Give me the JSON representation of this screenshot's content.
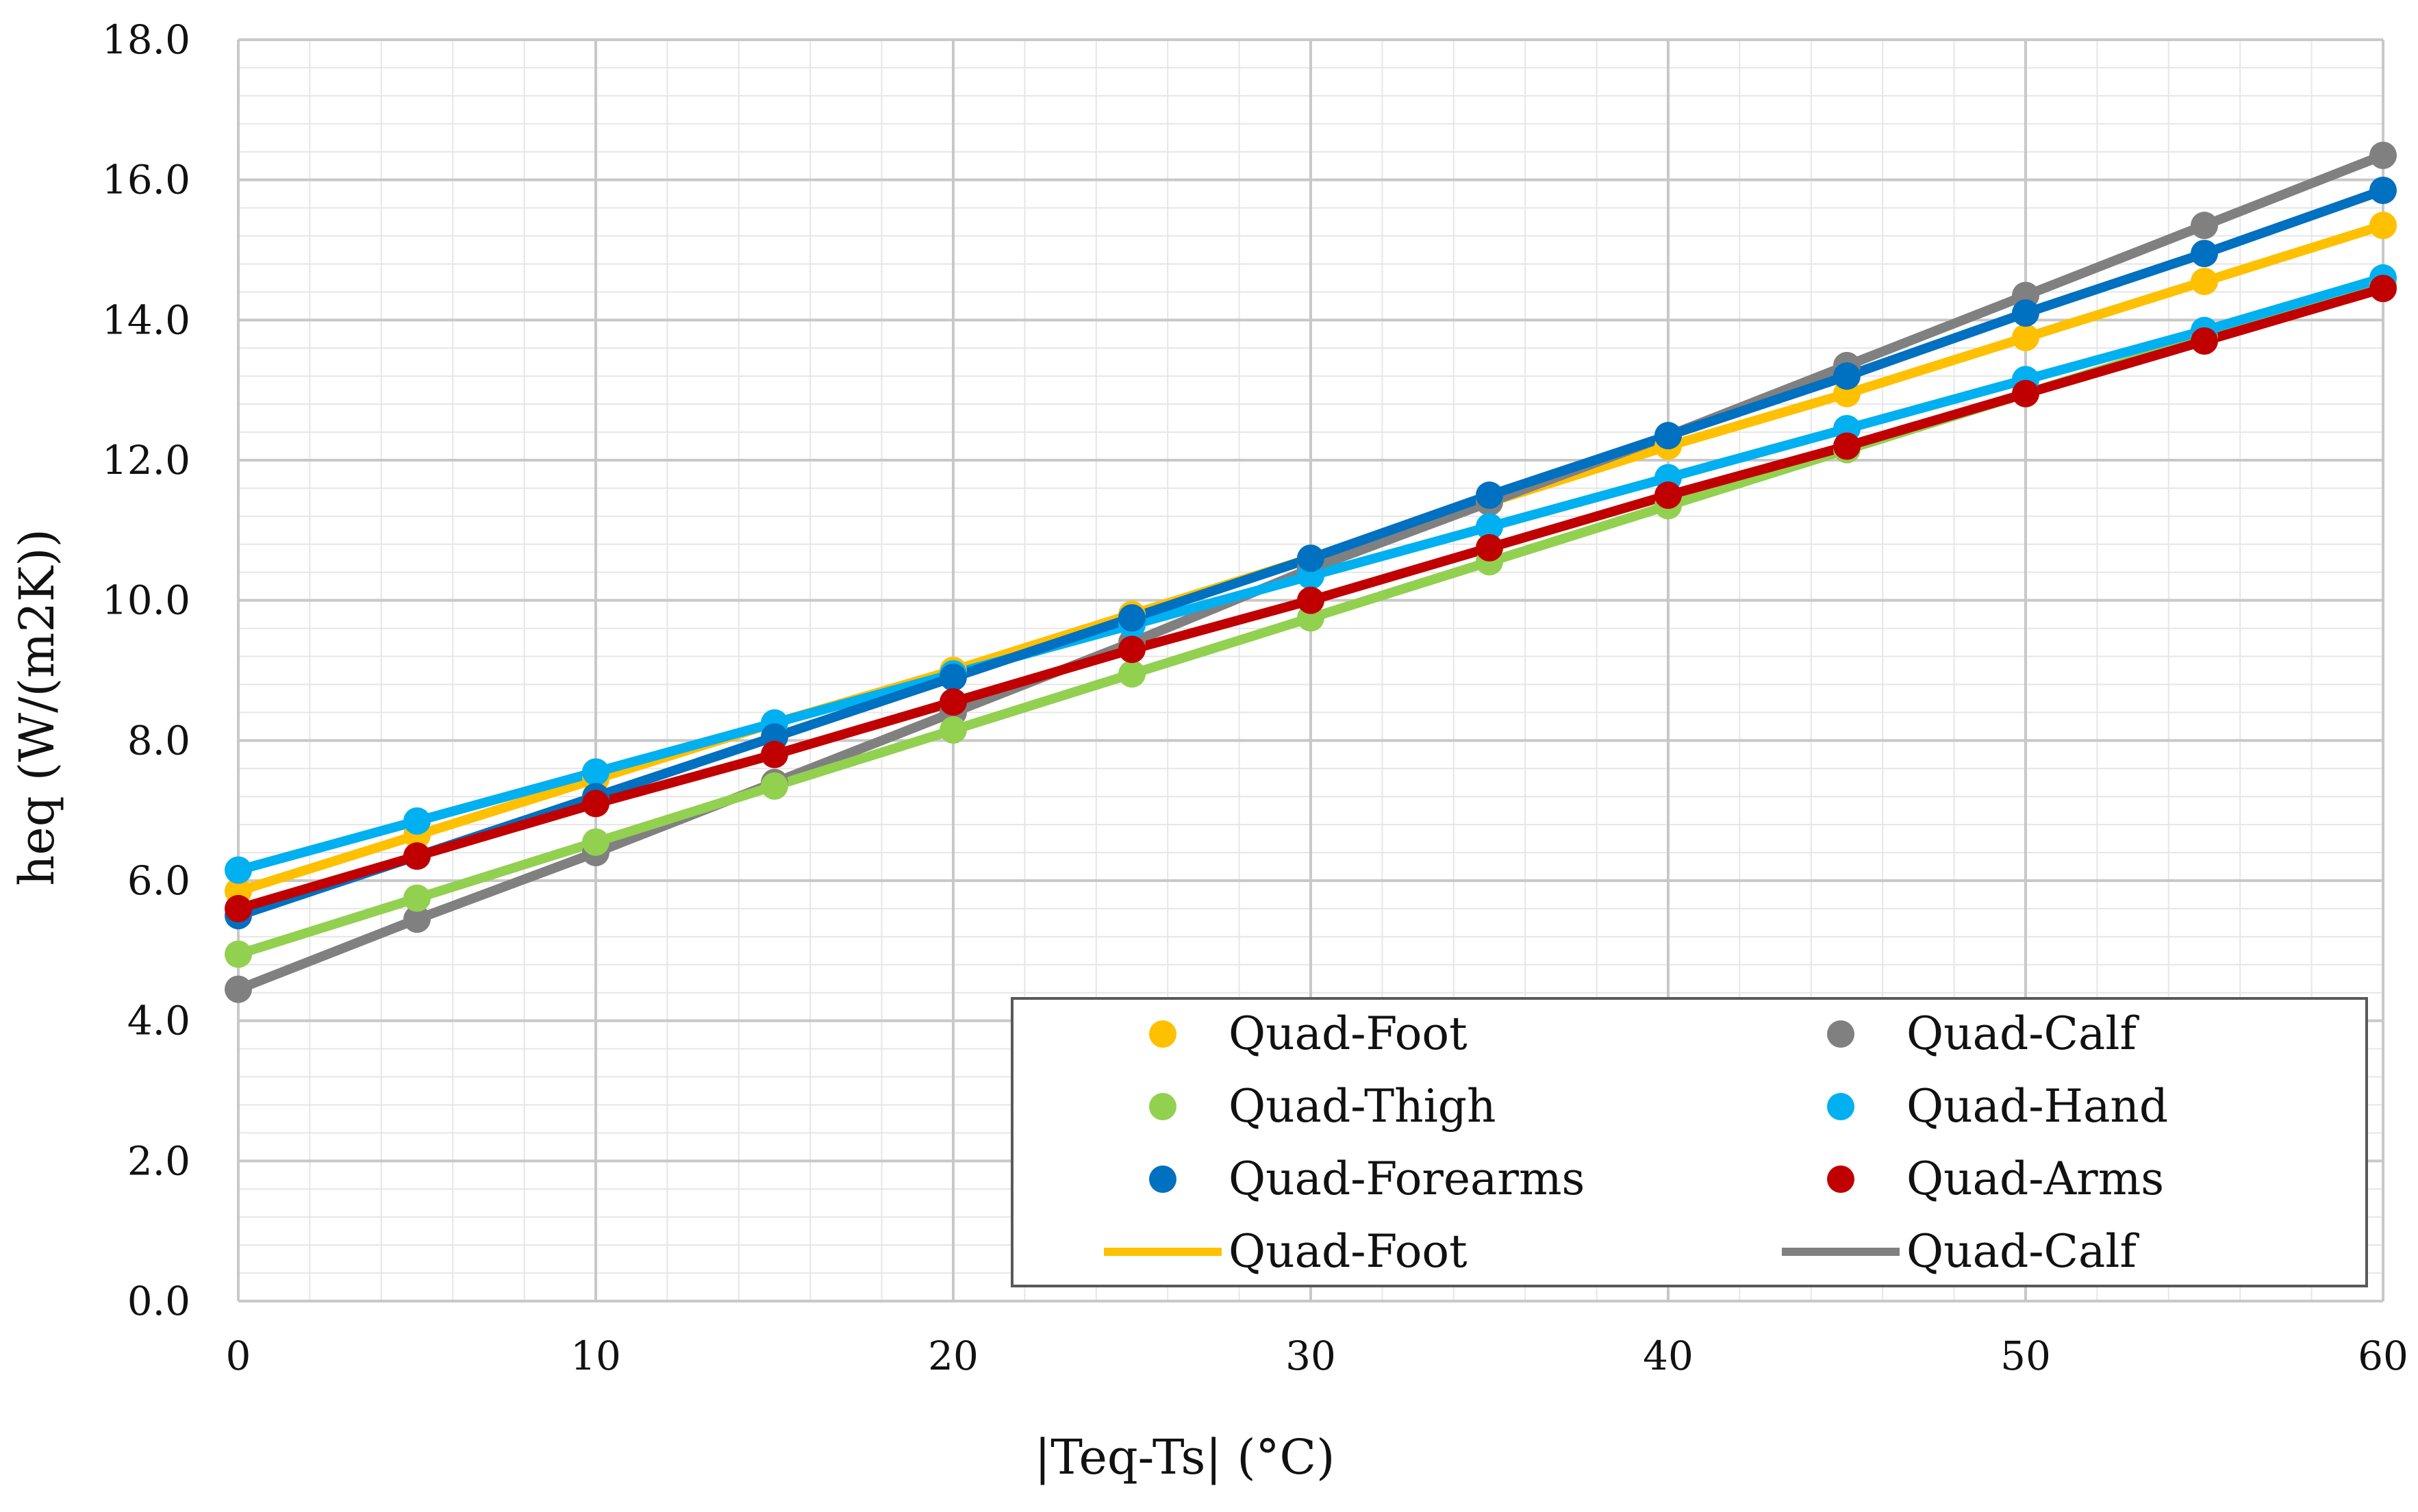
{
  "chart_data": {
    "type": "line",
    "title": "",
    "xlabel": "|Teq-Ts| (°C)",
    "ylabel": "heq (W/(m2K))",
    "xlim": [
      0,
      60
    ],
    "ylim": [
      0,
      18
    ],
    "x_ticks": [
      0,
      10,
      20,
      30,
      40,
      50,
      60
    ],
    "x_tick_labels": [
      "0",
      "10",
      "20",
      "30",
      "40",
      "50",
      "60"
    ],
    "y_ticks": [
      0,
      2,
      4,
      6,
      8,
      10,
      12,
      14,
      16,
      18
    ],
    "y_tick_labels": [
      "0.0",
      "2.0",
      "4.0",
      "6.0",
      "8.0",
      "10.0",
      "12.0",
      "14.0",
      "16.0",
      "18.0"
    ],
    "grid": true,
    "x": [
      0,
      5,
      10,
      15,
      20,
      25,
      30,
      35,
      40,
      45,
      50,
      55,
      60
    ],
    "series": [
      {
        "name": "Quad-Foot",
        "color": "#FFC000",
        "values": [
          5.85,
          6.65,
          7.45,
          8.25,
          9.0,
          9.8,
          10.6,
          11.4,
          12.2,
          12.95,
          13.75,
          14.55,
          15.35
        ]
      },
      {
        "name": "Quad-Calf",
        "color": "#808080",
        "values": [
          4.45,
          5.45,
          6.4,
          7.4,
          8.4,
          9.4,
          10.45,
          11.4,
          12.35,
          13.35,
          14.35,
          15.35,
          16.35
        ]
      },
      {
        "name": "Quad-Thigh",
        "color": "#92D050",
        "values": [
          4.95,
          5.75,
          6.55,
          7.35,
          8.15,
          8.95,
          9.75,
          10.55,
          11.35,
          12.15,
          12.95,
          13.75,
          14.5
        ]
      },
      {
        "name": "Quad-Hand",
        "color": "#00B0F0",
        "values": [
          6.15,
          6.85,
          7.55,
          8.25,
          8.95,
          9.65,
          10.35,
          11.05,
          11.75,
          12.45,
          13.15,
          13.85,
          14.6
        ]
      },
      {
        "name": "Quad-Forearms",
        "color": "#0070C0",
        "values": [
          5.5,
          6.35,
          7.2,
          8.05,
          8.9,
          9.75,
          10.6,
          11.5,
          12.35,
          13.2,
          14.1,
          14.95,
          15.85
        ]
      },
      {
        "name": "Quad-Arms",
        "color": "#C00000",
        "values": [
          5.6,
          6.35,
          7.1,
          7.8,
          8.55,
          9.3,
          10.0,
          10.75,
          11.5,
          12.2,
          12.95,
          13.7,
          14.45
        ]
      }
    ],
    "legend": {
      "placement": "bottom-right",
      "entries": [
        {
          "label": "Quad-Foot",
          "kind": "marker",
          "color": "#FFC000"
        },
        {
          "label": "Quad-Calf",
          "kind": "marker",
          "color": "#808080"
        },
        {
          "label": "Quad-Thigh",
          "kind": "marker",
          "color": "#92D050"
        },
        {
          "label": "Quad-Hand",
          "kind": "marker",
          "color": "#00B0F0"
        },
        {
          "label": "Quad-Forearms",
          "kind": "marker",
          "color": "#0070C0"
        },
        {
          "label": "Quad-Arms",
          "kind": "marker",
          "color": "#C00000"
        },
        {
          "label": "Quad-Foot",
          "kind": "line",
          "color": "#FFC000"
        },
        {
          "label": "Quad-Calf",
          "kind": "line",
          "color": "#808080"
        }
      ]
    }
  }
}
